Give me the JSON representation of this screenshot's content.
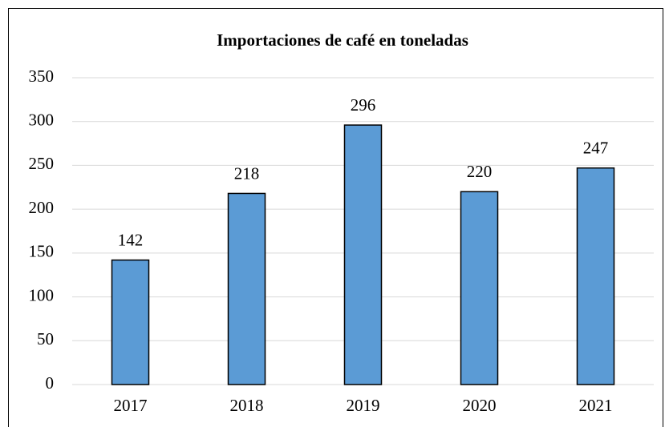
{
  "chart_data": {
    "type": "bar",
    "title": "Importaciones de café en toneladas",
    "categories": [
      "2017",
      "2018",
      "2019",
      "2020",
      "2021"
    ],
    "values": [
      142,
      218,
      296,
      220,
      247
    ],
    "color": "#5b9bd5",
    "ylim": [
      0,
      350
    ],
    "yticks": [
      0,
      50,
      100,
      150,
      200,
      250,
      300,
      350
    ],
    "grid": true
  }
}
